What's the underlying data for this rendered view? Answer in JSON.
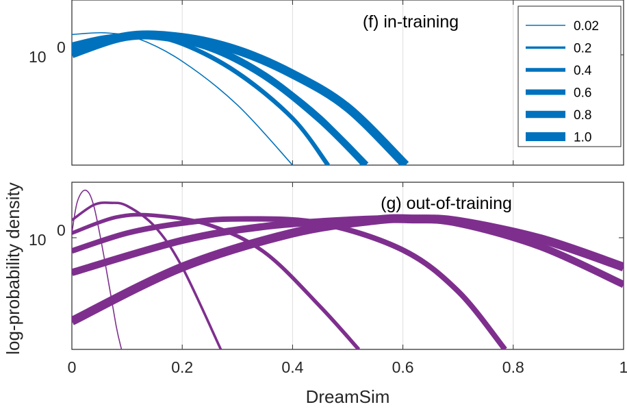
{
  "chart_data": [
    {
      "type": "line",
      "panel": "top",
      "title": "(f) in-training",
      "xlabel": "",
      "ylabel": "",
      "xlim": [
        0,
        1
      ],
      "xticks": [
        0,
        0.2,
        0.4,
        0.6,
        0.8,
        1
      ],
      "yscale": "log",
      "ylim": [
        0.3,
        2.2
      ],
      "ytick_labels": [
        "10",
        "0"
      ],
      "color": "#0072BD",
      "grid": true,
      "legend": {
        "placement": "top-right",
        "entries": [
          "0.02",
          "0.2",
          "0.4",
          "0.6",
          "0.8",
          "1.0"
        ]
      },
      "series": [
        {
          "name": "0.02",
          "x": [
            0,
            0.06,
            0.12,
            0.2,
            0.3,
            0.4
          ],
          "y": [
            1.45,
            1.48,
            1.38,
            1.05,
            0.62,
            0.3
          ]
        },
        {
          "name": "0.2",
          "x": [
            0,
            0.06,
            0.12,
            0.2,
            0.3,
            0.4,
            0.462
          ],
          "y": [
            1.3,
            1.42,
            1.45,
            1.28,
            0.9,
            0.52,
            0.3
          ]
        },
        {
          "name": "0.4",
          "x": [
            0,
            0.06,
            0.12,
            0.2,
            0.3,
            0.4,
            0.465
          ],
          "y": [
            1.25,
            1.4,
            1.44,
            1.3,
            0.92,
            0.53,
            0.3
          ]
        },
        {
          "name": "0.6",
          "x": [
            0,
            0.08,
            0.15,
            0.25,
            0.35,
            0.45,
            0.53
          ],
          "y": [
            1.22,
            1.4,
            1.43,
            1.25,
            0.88,
            0.53,
            0.3
          ]
        },
        {
          "name": "0.8",
          "x": [
            0,
            0.08,
            0.15,
            0.25,
            0.35,
            0.45,
            0.533
          ],
          "y": [
            1.2,
            1.38,
            1.42,
            1.24,
            0.88,
            0.52,
            0.3
          ]
        },
        {
          "name": "1.0",
          "x": [
            0,
            0.1,
            0.2,
            0.3,
            0.4,
            0.5,
            0.605
          ],
          "y": [
            1.15,
            1.42,
            1.4,
            1.2,
            0.9,
            0.6,
            0.3
          ]
        }
      ]
    },
    {
      "type": "line",
      "panel": "bottom",
      "title": "(g) out-of-training",
      "xlabel": "DreamSim",
      "ylabel": "log-probability density",
      "xlim": [
        0,
        1
      ],
      "xticks": [
        0,
        0.2,
        0.4,
        0.6,
        0.8,
        1
      ],
      "xtick_labels": [
        "0",
        "0.2",
        "0.4",
        "0.6",
        "0.8",
        "1"
      ],
      "yscale": "log",
      "ylim": [
        0.3,
        2.2
      ],
      "ytick_labels": [
        "10",
        "0"
      ],
      "color": "#7E2F8E",
      "grid": true,
      "series": [
        {
          "name": "0.02",
          "x": [
            0,
            0.01,
            0.025,
            0.04,
            0.06,
            0.08,
            0.09
          ],
          "y": [
            1.2,
            1.75,
            2.0,
            1.65,
            0.85,
            0.4,
            0.3
          ]
        },
        {
          "name": "0.2",
          "x": [
            0,
            0.04,
            0.07,
            0.1,
            0.15,
            0.2,
            0.27
          ],
          "y": [
            1.4,
            1.68,
            1.72,
            1.66,
            1.3,
            0.8,
            0.3
          ]
        },
        {
          "name": "0.4",
          "x": [
            0,
            0.08,
            0.15,
            0.25,
            0.35,
            0.45,
            0.52
          ],
          "y": [
            1.2,
            1.45,
            1.48,
            1.32,
            0.95,
            0.5,
            0.3
          ]
        },
        {
          "name": "0.6",
          "x": [
            0,
            0.1,
            0.2,
            0.3,
            0.45,
            0.6,
            0.7,
            0.785
          ],
          "y": [
            0.97,
            1.2,
            1.35,
            1.42,
            1.35,
            0.98,
            0.6,
            0.3
          ]
        },
        {
          "name": "0.8",
          "x": [
            0,
            0.2,
            0.35,
            0.5,
            0.6,
            0.7,
            0.85,
            1.0
          ],
          "y": [
            0.75,
            1.1,
            1.3,
            1.4,
            1.42,
            1.35,
            1.02,
            0.65
          ]
        },
        {
          "name": "1.0",
          "x": [
            0,
            0.2,
            0.4,
            0.55,
            0.62,
            0.7,
            0.85,
            1.0
          ],
          "y": [
            0.42,
            0.8,
            1.2,
            1.4,
            1.42,
            1.38,
            1.12,
            0.8
          ]
        }
      ]
    }
  ]
}
